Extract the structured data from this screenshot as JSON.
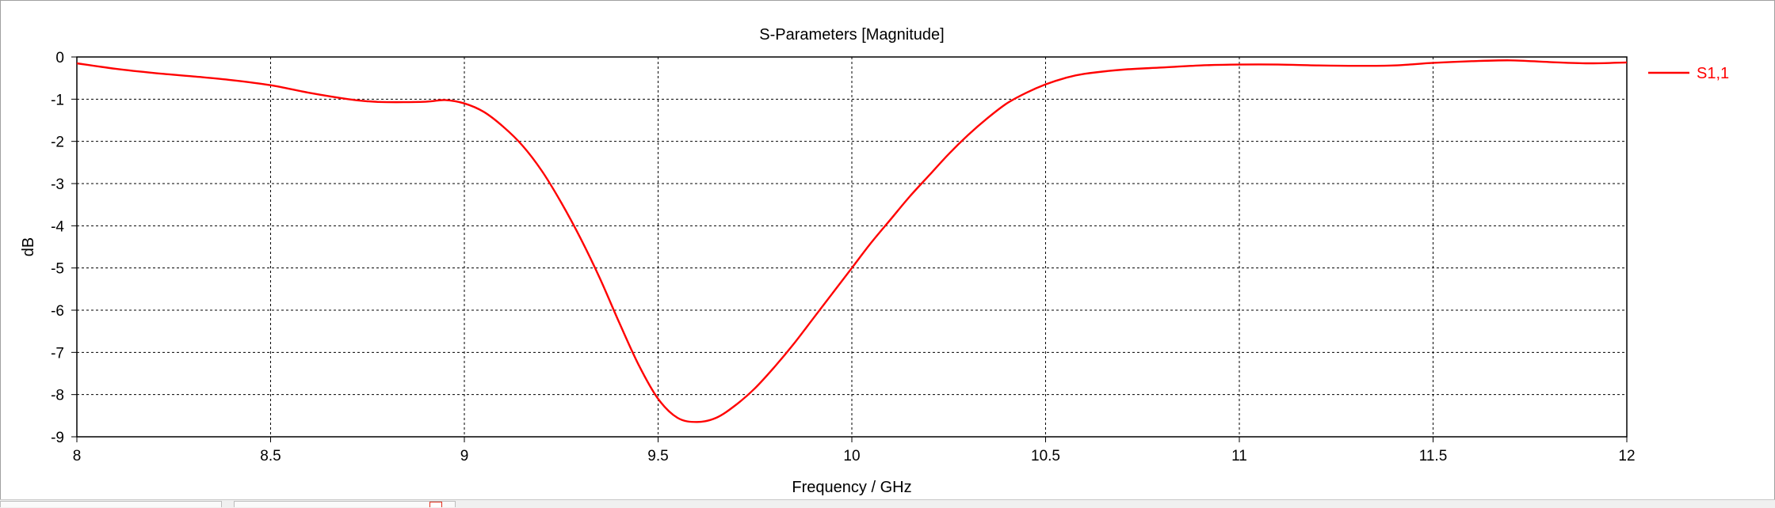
{
  "window": {
    "title": "S-Parameters [Magnitude]"
  },
  "chart_data": {
    "type": "line",
    "title": "S-Parameters [Magnitude]",
    "xlabel": "Frequency / GHz",
    "ylabel": "dB",
    "xlim": [
      8,
      12
    ],
    "ylim": [
      -9,
      0
    ],
    "x_ticks": [
      "8",
      "8.5",
      "9",
      "9.5",
      "10",
      "10.5",
      "11",
      "11.5",
      "12"
    ],
    "y_ticks": [
      "0",
      "-1",
      "-2",
      "-3",
      "-4",
      "-5",
      "-6",
      "-7",
      "-8",
      "-9"
    ],
    "grid": true,
    "legend_position": "right",
    "series": [
      {
        "name": "S1,1",
        "color": "#ff0000",
        "x": [
          8.0,
          8.1,
          8.2,
          8.3,
          8.4,
          8.5,
          8.6,
          8.7,
          8.75,
          8.8,
          8.9,
          8.95,
          9.0,
          9.05,
          9.1,
          9.15,
          9.2,
          9.25,
          9.3,
          9.35,
          9.4,
          9.45,
          9.5,
          9.55,
          9.6,
          9.65,
          9.7,
          9.75,
          9.8,
          9.85,
          9.9,
          9.95,
          10.0,
          10.05,
          10.1,
          10.15,
          10.2,
          10.25,
          10.3,
          10.35,
          10.4,
          10.45,
          10.5,
          10.55,
          10.6,
          10.7,
          10.8,
          10.9,
          11.0,
          11.1,
          11.2,
          11.3,
          11.4,
          11.5,
          11.6,
          11.7,
          11.8,
          11.9,
          12.0
        ],
        "y": [
          -0.15,
          -0.28,
          -0.38,
          -0.46,
          -0.55,
          -0.67,
          -0.85,
          -1.0,
          -1.05,
          -1.07,
          -1.06,
          -1.02,
          -1.1,
          -1.3,
          -1.65,
          -2.1,
          -2.7,
          -3.45,
          -4.3,
          -5.25,
          -6.3,
          -7.3,
          -8.1,
          -8.55,
          -8.65,
          -8.55,
          -8.25,
          -7.85,
          -7.35,
          -6.8,
          -6.2,
          -5.6,
          -5.0,
          -4.4,
          -3.85,
          -3.3,
          -2.8,
          -2.3,
          -1.85,
          -1.45,
          -1.1,
          -0.85,
          -0.65,
          -0.5,
          -0.4,
          -0.3,
          -0.25,
          -0.2,
          -0.18,
          -0.18,
          -0.2,
          -0.21,
          -0.2,
          -0.14,
          -0.1,
          -0.08,
          -0.12,
          -0.15,
          -0.13
        ]
      }
    ]
  }
}
